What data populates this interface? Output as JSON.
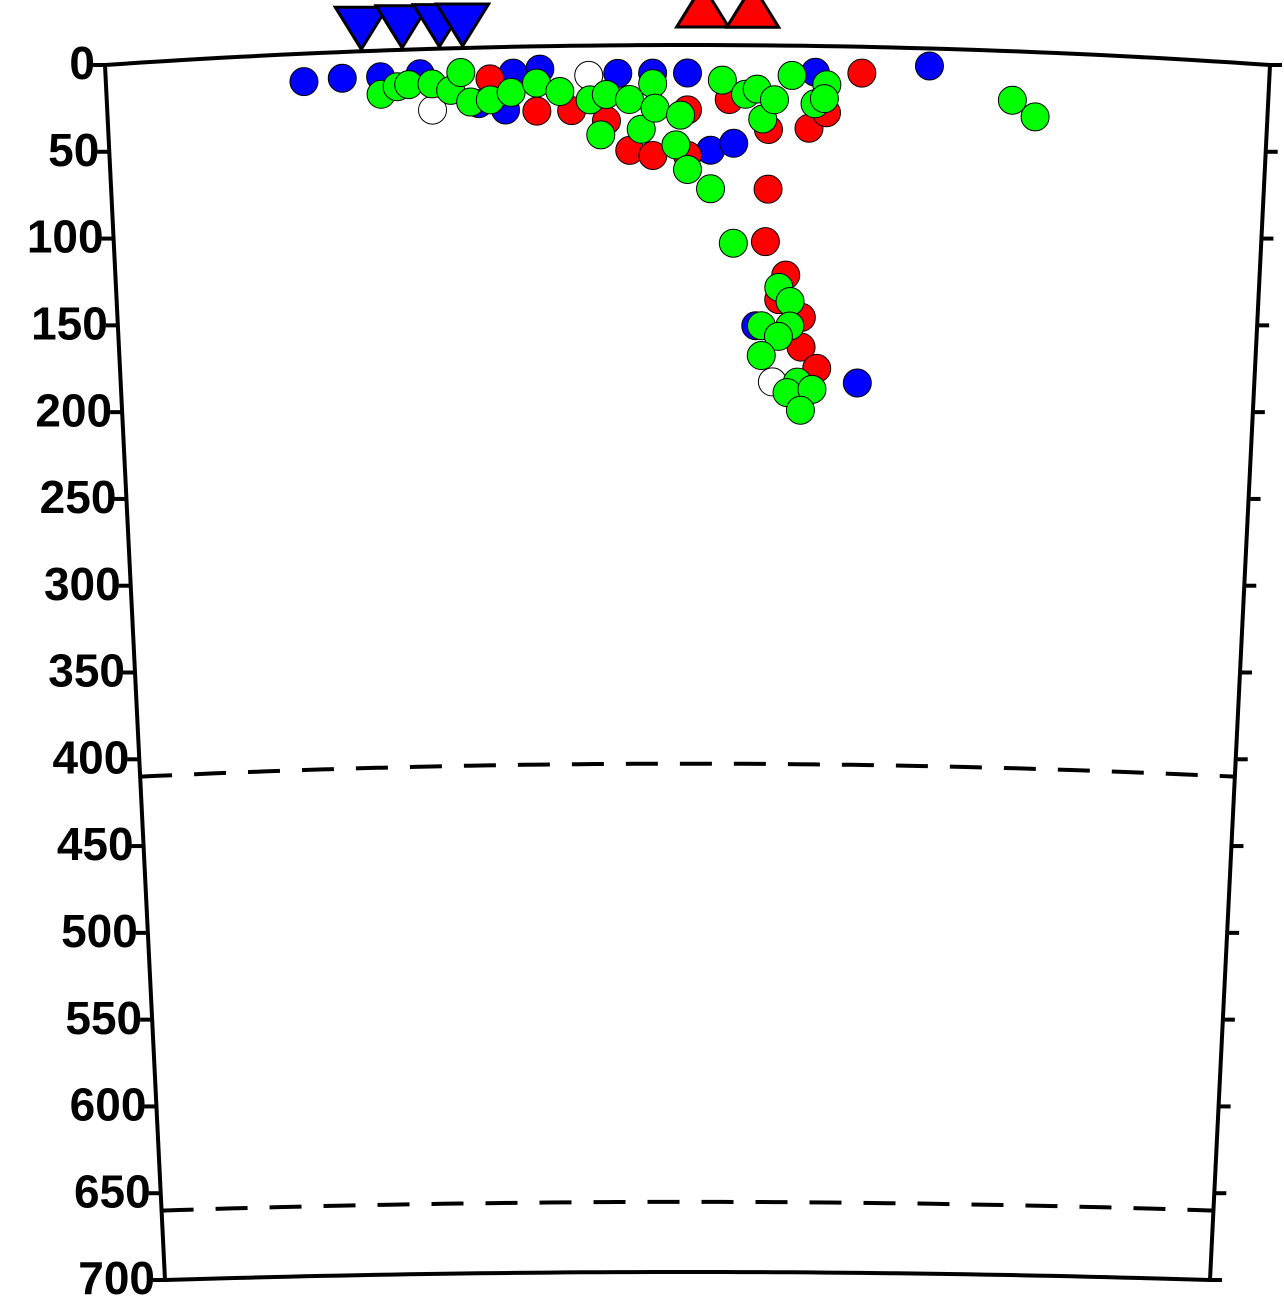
{
  "chart_data": {
    "type": "scatter",
    "ylim": [
      0,
      700
    ],
    "xlim": [
      0,
      100
    ],
    "yticks": [
      0,
      50,
      100,
      150,
      200,
      250,
      300,
      350,
      400,
      450,
      500,
      550,
      600,
      650,
      700
    ],
    "y_inverted": true,
    "reference_lines": [
      410,
      660
    ],
    "markers": [
      {
        "shape": "triangle-down",
        "color": "#0000ff",
        "x": 22
      },
      {
        "shape": "triangle-down",
        "color": "#0000ff",
        "x": 25.5
      },
      {
        "shape": "triangle-down",
        "color": "#0000ff",
        "x": 28.7
      },
      {
        "shape": "triangle-down",
        "color": "#0000ff",
        "x": 30.7
      },
      {
        "shape": "triangle-up",
        "color": "#ff0000",
        "x": 51.3
      },
      {
        "shape": "triangle-up",
        "color": "#ff0000",
        "x": 55.6
      }
    ],
    "series": [
      {
        "color": "#ffffff",
        "x": [
          28,
          41.5,
          57.5
        ],
        "y": [
          35,
          17,
          192
        ]
      },
      {
        "color": "#0000ff",
        "x": [
          17,
          20.3,
          23.6,
          27,
          34.3,
          32,
          37.3,
          35,
          44,
          47,
          50,
          52,
          54,
          56,
          61,
          65,
          70.8
        ],
        "y": [
          16,
          15,
          15,
          14,
          36,
          32,
          13,
          15,
          16,
          16,
          16,
          60,
          56,
          160,
          15,
          192,
          10
        ]
      },
      {
        "color": "#ff0000",
        "x": [
          33,
          37,
          40,
          43,
          45,
          47,
          50,
          50,
          57,
          56.8,
          58.6,
          58,
          60,
          60,
          61.4,
          60.5,
          62,
          65,
          57,
          53.6
        ],
        "y": [
          18,
          37,
          37,
          43,
          60,
          63,
          37,
          63,
          82,
          112,
          131,
          145,
          155,
          172,
          184,
          47,
          38,
          15,
          48,
          31
        ]
      },
      {
        "color": "#00ff00",
        "x": [
          23.6,
          25,
          26,
          28,
          29.6,
          30.5,
          31.3,
          33,
          34.8,
          37,
          39,
          41.6,
          42.5,
          43,
          45,
          46,
          47,
          47.2,
          49,
          49.4,
          50,
          52,
          54,
          53,
          55,
          56,
          56.5,
          57.5,
          59,
          58,
          59,
          56.5,
          59,
          58,
          56.5,
          59.7,
          58.8,
          61,
          60,
          61,
          62,
          61.8,
          78,
          80
        ],
        "y": [
          25,
          21,
          20,
          20,
          24,
          14,
          31,
          30,
          26,
          21,
          26,
          31,
          51,
          28,
          31,
          48,
          22,
          36,
          57,
          40,
          71,
          82,
          113,
          20,
          28,
          25,
          42,
          31,
          17,
          138,
          146,
          160,
          160,
          166,
          177,
          192,
          198,
          196,
          208,
          33,
          22,
          30,
          28,
          37
        ]
      }
    ]
  }
}
